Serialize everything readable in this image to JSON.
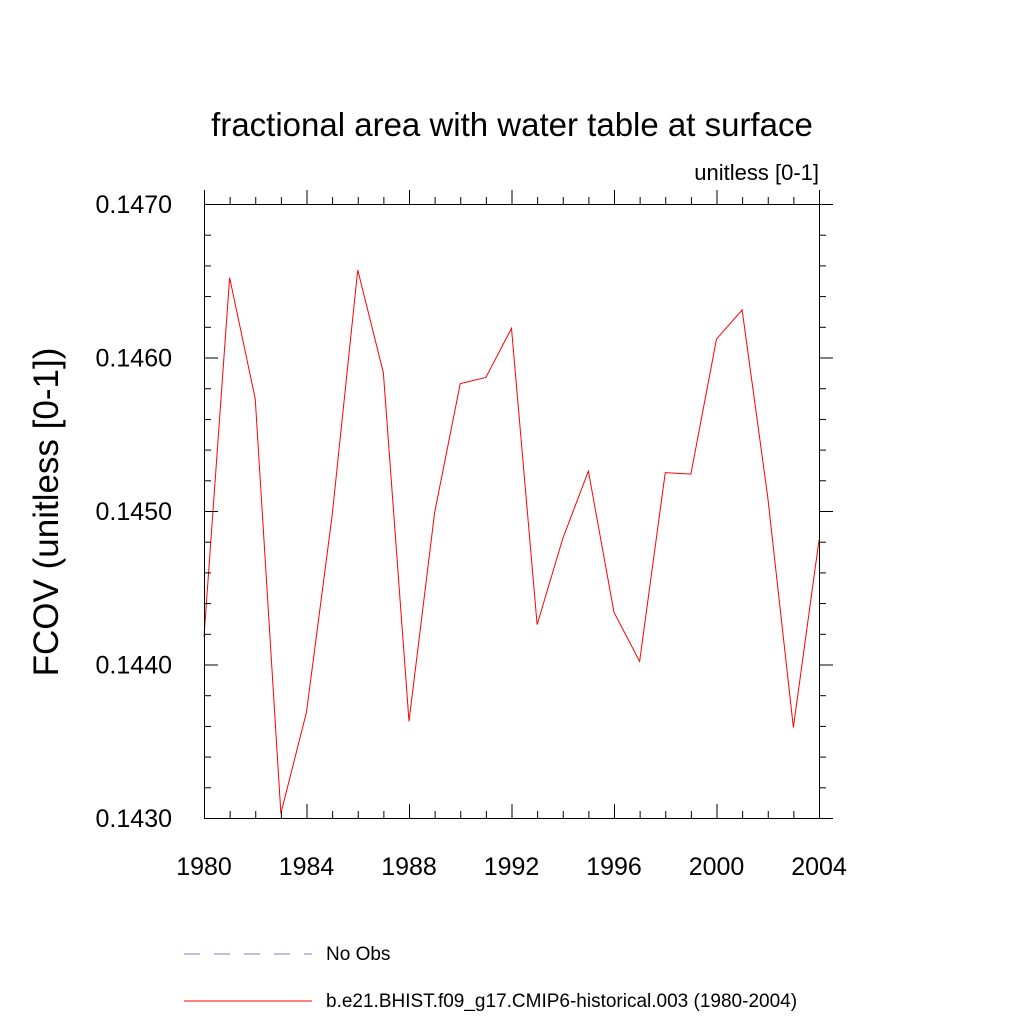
{
  "chart_data": {
    "type": "line",
    "title": "fractional area with water table at surface",
    "subtitle": "unitless [0-1]",
    "xlabel": "",
    "ylabel": "FCOV  (unitless [0-1])",
    "xlim": [
      1980,
      2004
    ],
    "ylim": [
      0.143,
      0.147
    ],
    "x_ticks": [
      1980,
      1984,
      1988,
      1992,
      1996,
      2000,
      2004
    ],
    "x_tick_labels": [
      "1980",
      "1984",
      "1988",
      "1992",
      "1996",
      "2000",
      "2004"
    ],
    "y_ticks": [
      0.143,
      0.144,
      0.145,
      0.146,
      0.147
    ],
    "y_tick_labels": [
      "0.1430",
      "0.1440",
      "0.1450",
      "0.1460",
      "0.1470"
    ],
    "grid": false,
    "legend_position": "bottom",
    "x": [
      1980,
      1981,
      1982,
      1983,
      1984,
      1985,
      1986,
      1987,
      1988,
      1989,
      1990,
      1991,
      1992,
      1993,
      1994,
      1995,
      1996,
      1997,
      1998,
      1999,
      2000,
      2001,
      2002,
      2003,
      2004
    ],
    "series": [
      {
        "name": "b.e21.BHIST.f09_g17.CMIP6-historical.003 (1980-2004)",
        "color": "#ff0000",
        "style": "solid",
        "values": [
          0.14418,
          0.14652,
          0.14573,
          0.14303,
          0.14369,
          0.14497,
          0.14657,
          0.1459,
          0.14363,
          0.14499,
          0.14583,
          0.14587,
          0.14619,
          0.14426,
          0.14482,
          0.14526,
          0.14434,
          0.14402,
          0.14525,
          0.14524,
          0.14612,
          0.14631,
          0.14509,
          0.14359,
          0.14481
        ]
      }
    ],
    "legend": [
      {
        "label": "No Obs",
        "color": "#7b7bc4",
        "style": "dashed"
      },
      {
        "label": "b.e21.BHIST.f09_g17.CMIP6-historical.003 (1980-2004)",
        "color": "#ff0000",
        "style": "solid"
      }
    ]
  }
}
